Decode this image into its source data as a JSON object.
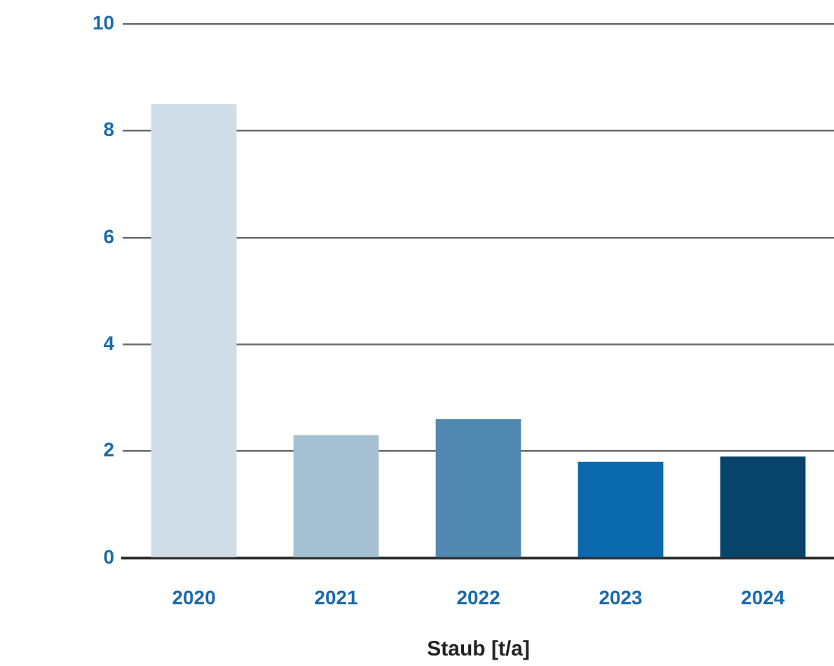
{
  "chart_data": {
    "type": "bar",
    "xlabel": "Staub [t/a]",
    "categories": [
      "2020",
      "2021",
      "2022",
      "2023",
      "2024"
    ],
    "values": [
      8.5,
      2.3,
      2.6,
      1.8,
      1.9
    ],
    "colors": [
      "#d0dde7",
      "#a5c0d3",
      "#5088af",
      "#0b6aae",
      "#08446a"
    ],
    "ylim": [
      0,
      10
    ],
    "yticks": [
      0,
      2,
      4,
      6,
      8,
      10
    ],
    "grid": "y"
  }
}
